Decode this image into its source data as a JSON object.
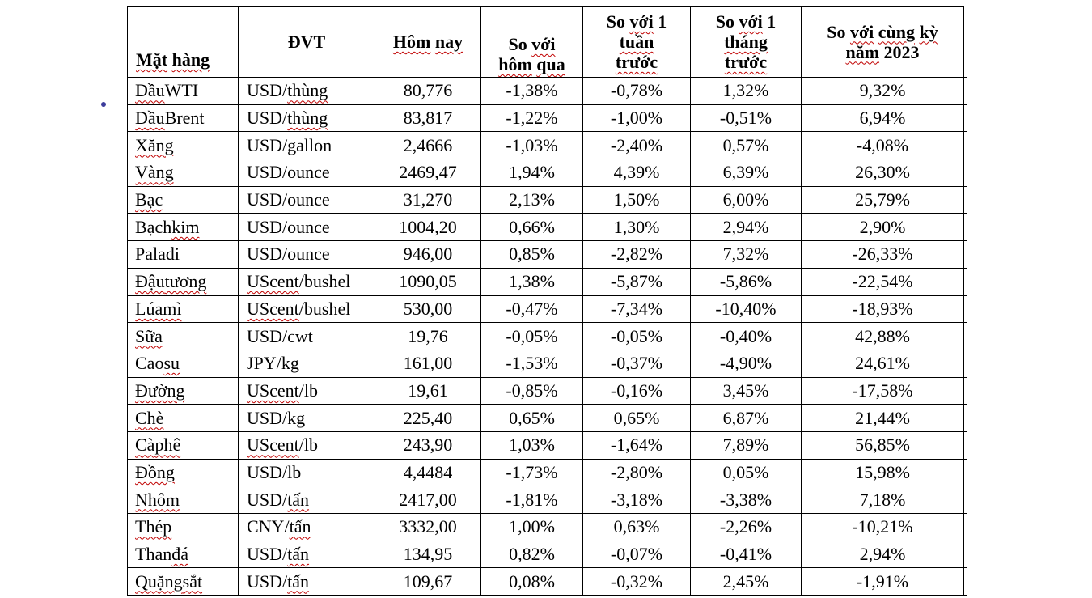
{
  "bullet": {
    "color": "#3d3d9c"
  },
  "table": {
    "border_color": "#000000",
    "squiggle_color": "#c00000",
    "headers": [
      {
        "lines": [
          "Mặt hàng"
        ],
        "flagged": [
          "Mặt",
          "hàng"
        ]
      },
      {
        "lines": [
          "ĐVT"
        ],
        "flagged": []
      },
      {
        "lines": [
          "Hôm nay"
        ],
        "flagged": [
          "Hôm",
          "nay"
        ]
      },
      {
        "lines": [
          "So với",
          "hôm qua"
        ],
        "flagged": [
          "với",
          "hôm",
          "qua"
        ]
      },
      {
        "lines": [
          "So với 1",
          "tuần",
          "trước"
        ],
        "flagged": [
          "với",
          "tuần",
          "trước"
        ]
      },
      {
        "lines": [
          "So với 1",
          "tháng",
          "trước"
        ],
        "flagged": [
          "với",
          "tháng",
          "trước"
        ]
      },
      {
        "lines": [
          "So với cùng kỳ",
          "năm 2023"
        ],
        "flagged": [
          "với",
          "cùng",
          "kỳ",
          "năm"
        ]
      }
    ],
    "rows": [
      {
        "cells": [
          "Dầu WTI",
          "USD/thùng",
          "80,776",
          "-1,38%",
          "-0,78%",
          "1,32%",
          "9,32%"
        ],
        "flagged": [
          "Dầu",
          "thùng"
        ]
      },
      {
        "cells": [
          "Dầu Brent",
          "USD/thùng",
          "83,817",
          "-1,22%",
          "-1,00%",
          "-0,51%",
          "6,94%"
        ],
        "flagged": [
          "Dầu",
          "thùng"
        ]
      },
      {
        "cells": [
          "Xăng",
          "USD/gallon",
          "2,4666",
          "-1,03%",
          "-2,40%",
          "0,57%",
          "-4,08%"
        ],
        "flagged": [
          "Xăng"
        ]
      },
      {
        "cells": [
          "Vàng",
          "USD/ounce",
          "2469,47",
          "1,94%",
          "4,39%",
          "6,39%",
          "26,30%"
        ],
        "flagged": [
          "Vàng"
        ]
      },
      {
        "cells": [
          "Bạc",
          "USD/ounce",
          "31,270",
          "2,13%",
          "1,50%",
          "6,00%",
          "25,79%"
        ],
        "flagged": [
          "Bạc"
        ]
      },
      {
        "cells": [
          "Bạch kim",
          "USD/ounce",
          "1004,20",
          "0,66%",
          "1,30%",
          "2,94%",
          "2,90%"
        ],
        "flagged": [
          "kim"
        ]
      },
      {
        "cells": [
          "Paladi",
          "USD/ounce",
          "946,00",
          "0,85%",
          "-2,82%",
          "7,32%",
          "-26,33%"
        ],
        "flagged": []
      },
      {
        "cells": [
          "Đậu tương",
          "UScent/bushel",
          "1090,05",
          "1,38%",
          "-5,87%",
          "-5,86%",
          "-22,54%"
        ],
        "flagged": [
          "Đậu",
          "tương",
          "UScent"
        ]
      },
      {
        "cells": [
          "Lúa mì",
          "UScent/bushel",
          "530,00",
          "-0,47%",
          "-7,34%",
          "-10,40%",
          "-18,93%"
        ],
        "flagged": [
          "Lúa",
          "mì",
          "UScent"
        ]
      },
      {
        "cells": [
          "Sữa",
          "USD/cwt",
          "19,76",
          "-0,05%",
          "-0,05%",
          "-0,40%",
          "42,88%"
        ],
        "flagged": [
          "Sữa"
        ]
      },
      {
        "cells": [
          "Cao su",
          "JPY/kg",
          "161,00",
          "-1,53%",
          "-0,37%",
          "-4,90%",
          "24,61%"
        ],
        "flagged": [
          "su"
        ]
      },
      {
        "cells": [
          "Đường",
          "UScent/lb",
          "19,61",
          "-0,85%",
          "-0,16%",
          "3,45%",
          "-17,58%"
        ],
        "flagged": [
          "Đường",
          "UScent"
        ]
      },
      {
        "cells": [
          "Chè",
          "USD/kg",
          "225,40",
          "0,65%",
          "0,65%",
          "6,87%",
          "21,44%"
        ],
        "flagged": [
          "Chè"
        ]
      },
      {
        "cells": [
          "Cà phê",
          "UScent/lb",
          "243,90",
          "1,03%",
          "-1,64%",
          "7,89%",
          "56,85%"
        ],
        "flagged": [
          "Cà",
          "phê",
          "UScent"
        ]
      },
      {
        "cells": [
          "Đồng",
          "USD/lb",
          "4,4484",
          "-1,73%",
          "-2,80%",
          "0,05%",
          "15,98%"
        ],
        "flagged": [
          "Đồng"
        ]
      },
      {
        "cells": [
          "Nhôm",
          "USD/tấn",
          "2417,00",
          "-1,81%",
          "-3,18%",
          "-3,38%",
          "7,18%"
        ],
        "flagged": [
          "Nhôm",
          "tấn"
        ]
      },
      {
        "cells": [
          "Thép",
          "CNY/tấn",
          "3332,00",
          "1,00%",
          "0,63%",
          "-2,26%",
          "-10,21%"
        ],
        "flagged": [
          "Thép",
          "tấn"
        ]
      },
      {
        "cells": [
          "Than đá",
          "USD/tấn",
          "134,95",
          "0,82%",
          "-0,07%",
          "-0,41%",
          "2,94%"
        ],
        "flagged": [
          "đá",
          "tấn"
        ]
      },
      {
        "cells": [
          "Quặng sắt",
          "USD/tấn",
          "109,67",
          "0,08%",
          "-0,32%",
          "2,45%",
          "-1,91%"
        ],
        "flagged": [
          "Quặng",
          "sắt",
          "tấn"
        ]
      }
    ]
  }
}
